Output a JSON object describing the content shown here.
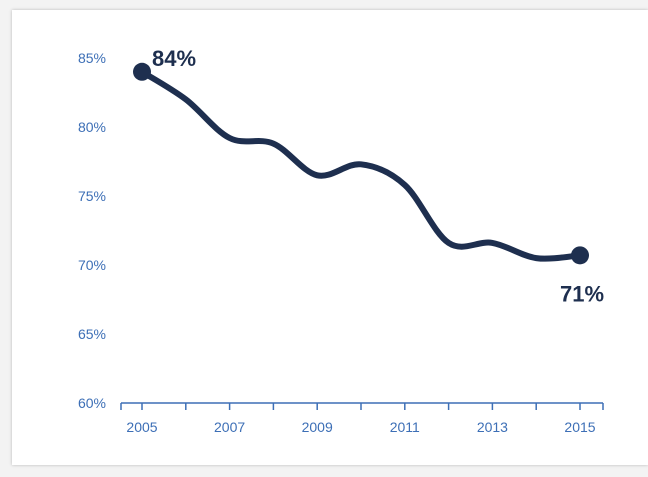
{
  "chart_data": {
    "type": "line",
    "title": "",
    "xlabel": "",
    "ylabel": "",
    "x": [
      2005,
      2006,
      2007,
      2008,
      2009,
      2010,
      2011,
      2012,
      2013,
      2014,
      2015
    ],
    "values": [
      84,
      82,
      79.2,
      78.8,
      76.5,
      77.3,
      75.8,
      71.6,
      71.6,
      70.5,
      70.7
    ],
    "ylim": [
      60,
      85
    ],
    "yticks": [
      "60%",
      "65%",
      "70%",
      "75%",
      "80%",
      "85%"
    ],
    "xticks": [
      "2005",
      "2007",
      "2009",
      "2011",
      "2013",
      "2015"
    ],
    "annotations": [
      {
        "x": 2005,
        "label": "84%"
      },
      {
        "x": 2015,
        "label": "71%"
      }
    ],
    "grid": false,
    "colors": {
      "line": "#1e2f4f",
      "axis": "#3d6fb6",
      "tick_label": "#3d6fb6"
    }
  }
}
